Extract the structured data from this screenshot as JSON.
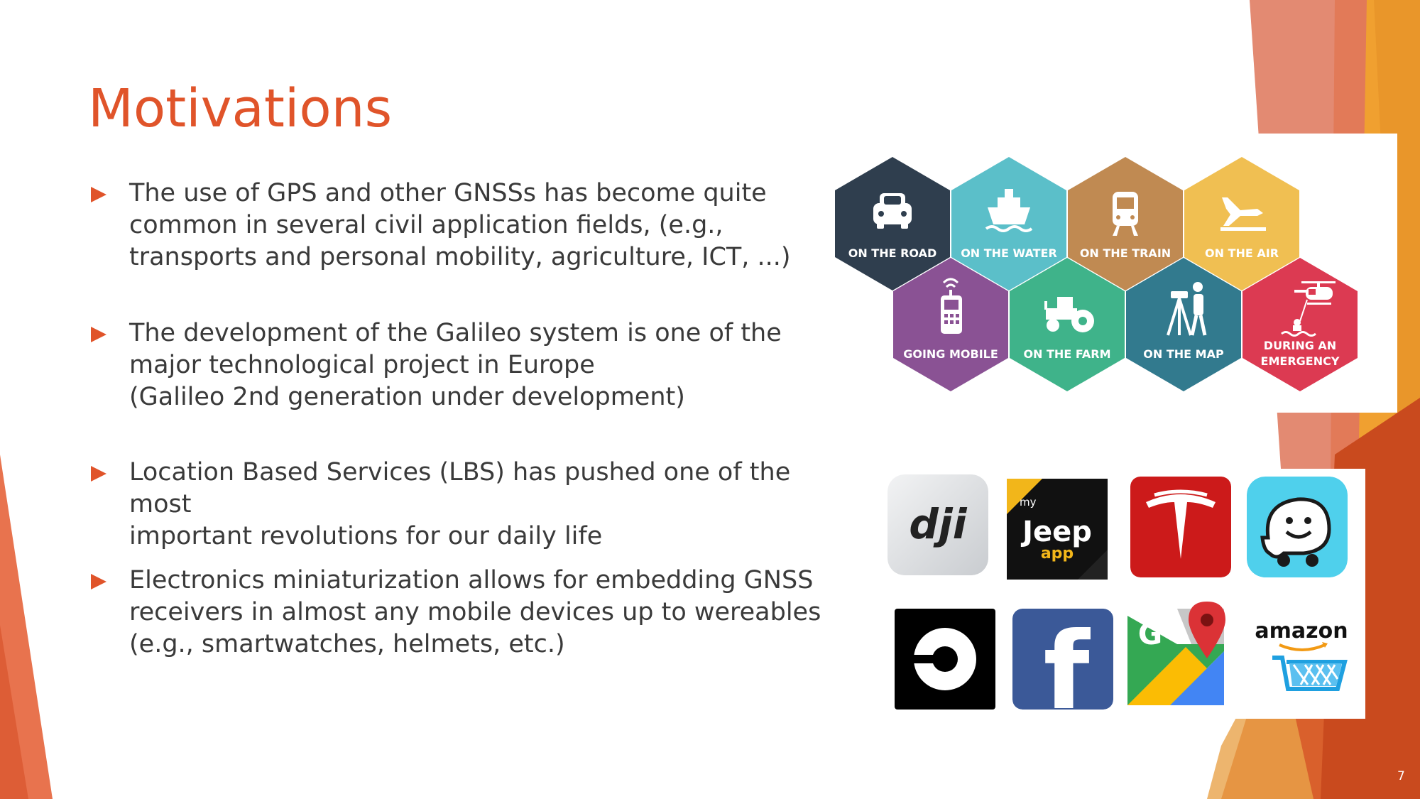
{
  "slide": {
    "title": "Motivations",
    "number": "7",
    "accent_color": "#e0542a",
    "text_color": "#3a3a3a"
  },
  "bullets": [
    {
      "text": "The use of GPS and other GNSSs has become quite\ncommon in several civil application fields, (e.g.,\ntransports and personal mobility, agriculture, ICT, ...)"
    },
    {
      "text": "The development of the Galileo system is one of the\nmajor technological project in Europe\n(Galileo 2nd generation under development)"
    },
    {
      "text": "Location Based Services (LBS) has pushed one of the most\nimportant revolutions for our daily life"
    },
    {
      "text": "Electronics miniaturization allows for embedding GNSS\nreceivers in almost any mobile devices up to wereables\n(e.g., smartwatches, helmets, etc.)"
    }
  ],
  "hexagons": [
    {
      "label": "ON THE ROAD",
      "color": "#2f3e4e",
      "icon": "car-icon"
    },
    {
      "label": "ON THE WATER",
      "color": "#5bbfc9",
      "icon": "ship-icon"
    },
    {
      "label": "ON THE TRAIN",
      "color": "#c08a52",
      "icon": "train-icon"
    },
    {
      "label": "ON THE AIR",
      "color": "#f0bf52",
      "icon": "plane-icon"
    },
    {
      "label": "GOING MOBILE",
      "color": "#8a5294",
      "icon": "mobile-phone-icon"
    },
    {
      "label": "ON THE FARM",
      "color": "#3fb38a",
      "icon": "tractor-icon"
    },
    {
      "label": "ON THE MAP",
      "color": "#327a8e",
      "icon": "surveyor-icon"
    },
    {
      "label_line1": "DURING AN",
      "label_line2": "EMERGENCY",
      "color": "#dc3a52",
      "icon": "helicopter-rescue-icon"
    }
  ],
  "apps": [
    {
      "name": "dji",
      "icon": "dji-logo-icon",
      "logo_text": "dji",
      "bg": "#dfe1e4"
    },
    {
      "name": "my Jeep app",
      "icon": "jeep-app-logo-icon",
      "logo_small": "my",
      "logo_main": "Jeep",
      "logo_sub": "app",
      "bg": "#111111"
    },
    {
      "name": "Tesla",
      "icon": "tesla-logo-icon",
      "bg": "#cc1a1a"
    },
    {
      "name": "Waze",
      "icon": "waze-logo-icon",
      "bg": "#4fd0ec"
    },
    {
      "name": "Uber",
      "icon": "uber-logo-icon",
      "bg": "#000000"
    },
    {
      "name": "Facebook",
      "icon": "facebook-logo-icon",
      "logo_text": "f",
      "bg": "#3b5998"
    },
    {
      "name": "Google Maps",
      "icon": "google-maps-logo-icon",
      "logo_text": "G",
      "bg": "#ffffff"
    },
    {
      "name": "Amazon",
      "icon": "amazon-logo-icon",
      "logo_text": "amazon",
      "bg": "#ffffff"
    }
  ]
}
